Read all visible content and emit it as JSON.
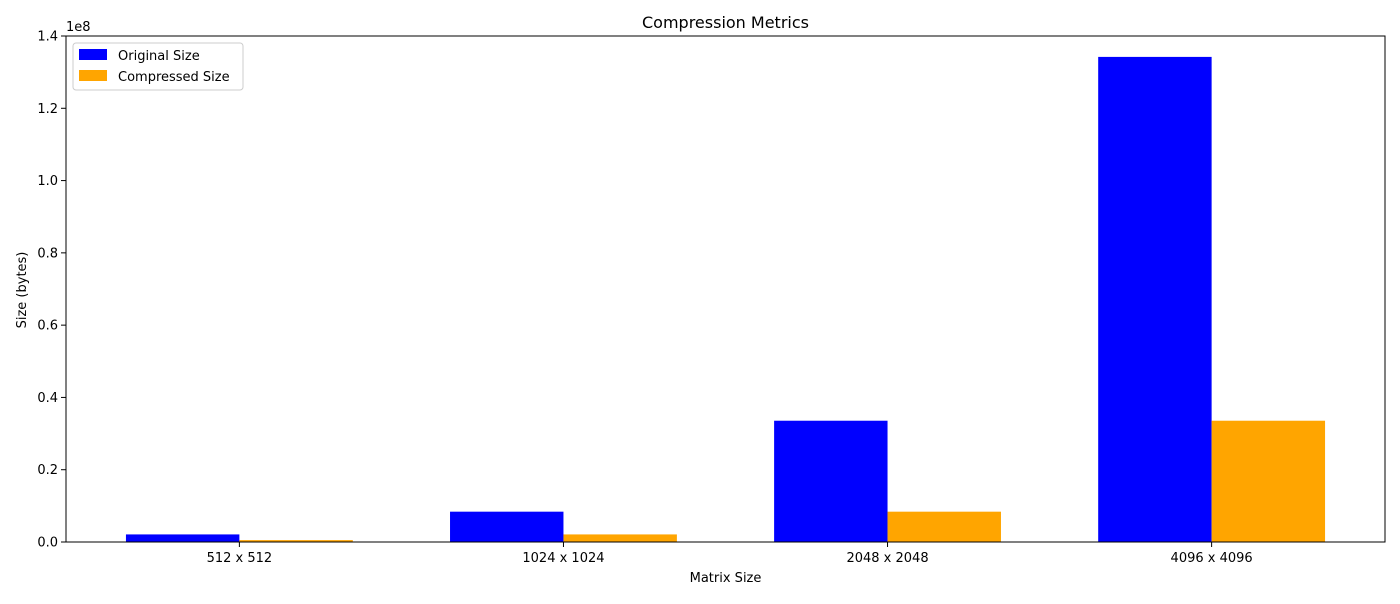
{
  "chart_data": {
    "type": "bar",
    "title": "Compression Metrics",
    "xlabel": "Matrix Size",
    "ylabel": "Size (bytes)",
    "y_offset_label": "1e8",
    "y_scale": 100000000,
    "categories": [
      "512 x 512",
      "1024 x 1024",
      "2048 x 2048",
      "4096 x 4096"
    ],
    "series": [
      {
        "name": "Original Size",
        "color": "#0000ff",
        "values": [
          2097152,
          8388608,
          33554432,
          134217728
        ]
      },
      {
        "name": "Compressed Size",
        "color": "#ffa500",
        "values": [
          524288,
          2097152,
          8388608,
          33554432
        ]
      }
    ],
    "ylim": [
      0,
      140000000
    ],
    "yticks": [
      0,
      20000000,
      40000000,
      60000000,
      80000000,
      100000000,
      120000000,
      140000000
    ],
    "ytick_labels": [
      "0.0",
      "0.2",
      "0.4",
      "0.6",
      "0.8",
      "1.0",
      "1.2",
      "1.4"
    ],
    "grid": false,
    "legend_position": "upper-left"
  }
}
